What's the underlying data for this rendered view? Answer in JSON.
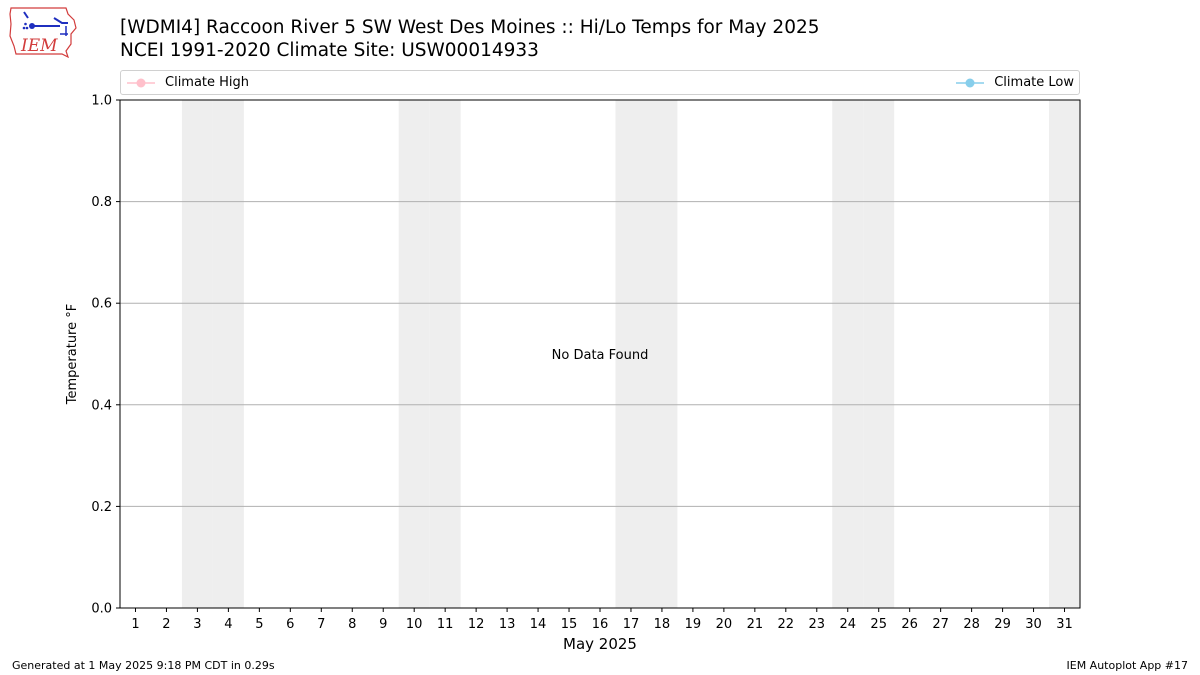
{
  "header": {
    "title_line1": "[WDMI4] Raccoon River 5 SW West Des Moines :: Hi/Lo Temps for May 2025",
    "title_line2": "NCEI 1991-2020 Climate Site: USW00014933",
    "logo_text": "IEM",
    "logo_icon": "iem-iowa-logo-icon"
  },
  "legend": {
    "placement": "top",
    "items": [
      {
        "label": "Climate High",
        "color": "#ffc0cb"
      },
      {
        "label": "Climate Low",
        "color": "#87ceeb"
      }
    ]
  },
  "chart_data": {
    "type": "line",
    "title": "[WDMI4] Raccoon River 5 SW West Des Moines :: Hi/Lo Temps for May 2025",
    "subtitle": "NCEI 1991-2020 Climate Site: USW00014933",
    "xlabel": "May 2025",
    "ylabel": "Temperature °F",
    "x_ticks": [
      "1",
      "2",
      "3",
      "4",
      "5",
      "6",
      "7",
      "8",
      "9",
      "10",
      "11",
      "12",
      "13",
      "14",
      "15",
      "16",
      "17",
      "18",
      "19",
      "20",
      "21",
      "22",
      "23",
      "24",
      "25",
      "26",
      "27",
      "28",
      "29",
      "30",
      "31"
    ],
    "xlim": [
      0.5,
      31.5
    ],
    "ylim": [
      0.0,
      1.0
    ],
    "y_ticks": [
      "0.0",
      "0.2",
      "0.4",
      "0.6",
      "0.8",
      "1.0"
    ],
    "grid": "horizontal",
    "weekend_days": [
      3,
      4,
      10,
      11,
      17,
      18,
      24,
      25,
      31
    ],
    "weekend_shade_color": "#eeeeee",
    "annotation": "No Data Found",
    "series": [
      {
        "name": "Climate High",
        "color": "#ffc0cb",
        "values": []
      },
      {
        "name": "Climate Low",
        "color": "#87ceeb",
        "values": []
      }
    ]
  },
  "footer": {
    "left": "Generated at 1 May 2025 9:18 PM CDT in 0.29s",
    "right": "IEM Autoplot App #17"
  }
}
